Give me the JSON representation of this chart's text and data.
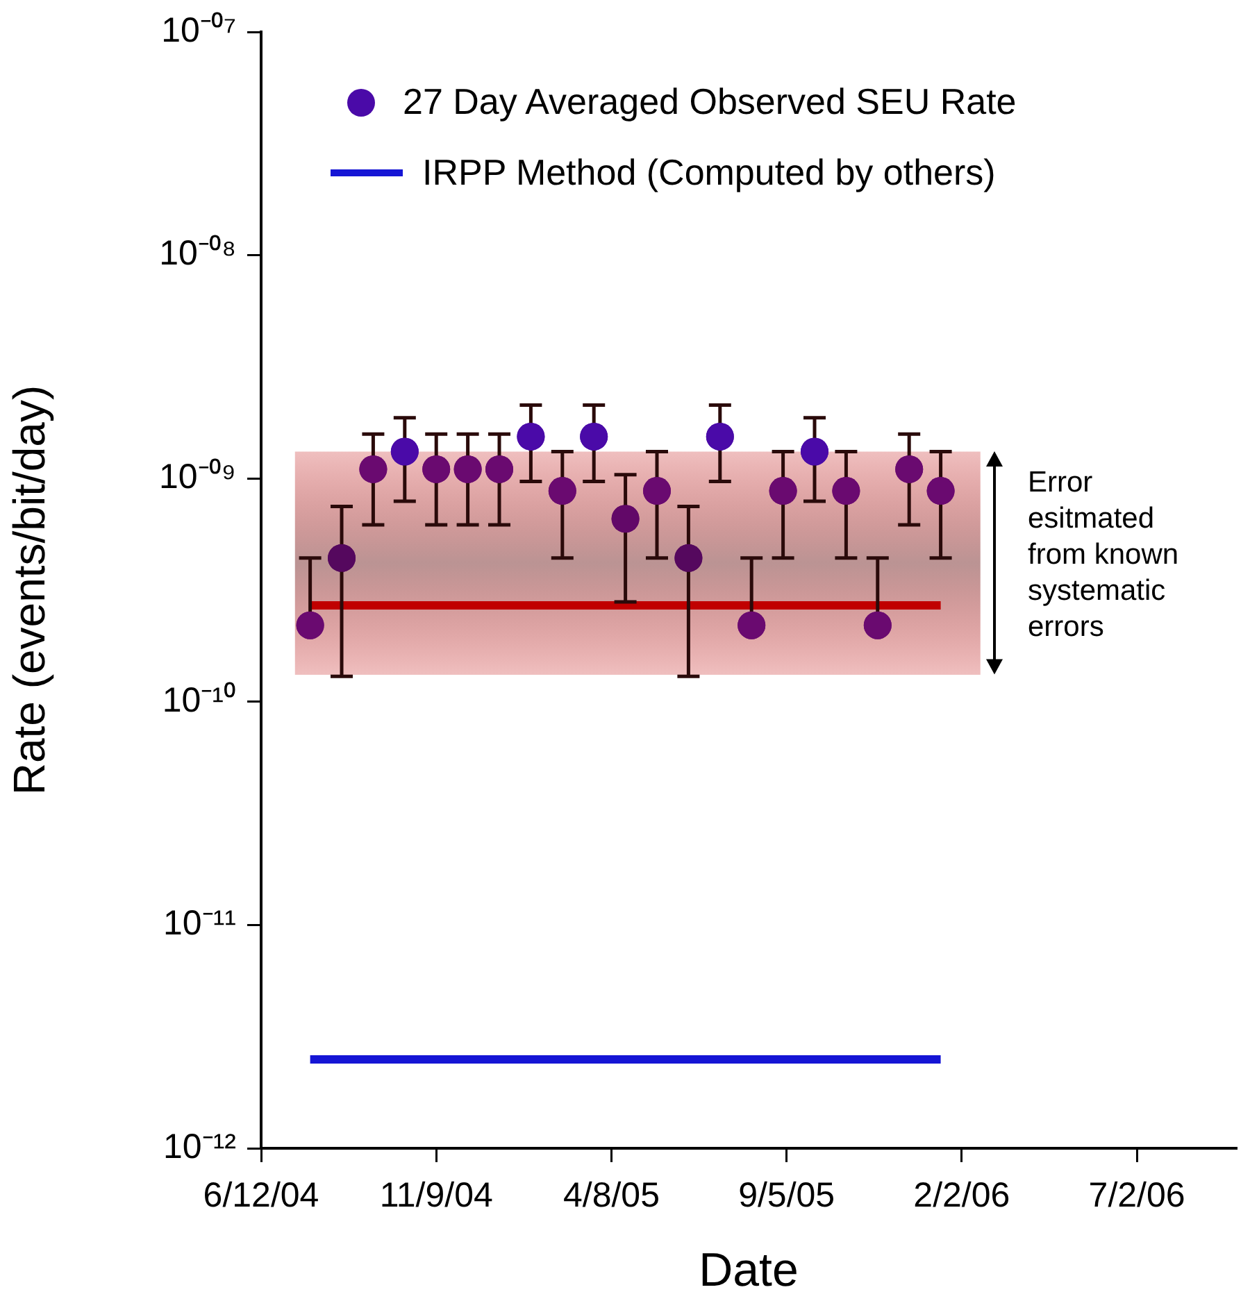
{
  "chart_data": {
    "type": "scatter",
    "xlabel": "Date",
    "ylabel": "Rate (events/bit/day)",
    "log": true,
    "grid": false,
    "legend": "top",
    "xlim": [
      "2004-06-12",
      "2006-09-25"
    ],
    "xticks": [
      {
        "value": "2004-06-12",
        "label": "6/12/04"
      },
      {
        "value": "2004-11-09",
        "label": "11/9/04"
      },
      {
        "value": "2005-04-08",
        "label": "4/8/05"
      },
      {
        "value": "2005-09-05",
        "label": "9/5/05"
      },
      {
        "value": "2006-02-02",
        "label": "2/2/06"
      },
      {
        "value": "2006-07-02",
        "label": "7/2/06"
      }
    ],
    "ylim": [
      1e-12,
      1e-07
    ],
    "yticks": [
      {
        "value": 1e-12,
        "label": "10⁻¹²"
      },
      {
        "value": 1e-11,
        "label": "10⁻¹¹"
      },
      {
        "value": 1e-10,
        "label": "10⁻¹⁰"
      },
      {
        "value": 1e-09,
        "label": "10⁻⁰⁹"
      },
      {
        "value": 1e-08,
        "label": "10⁻⁰⁸"
      },
      {
        "value": 1e-07,
        "label": "10⁻⁰⁷"
      }
    ],
    "series": [
      {
        "name": "27 Day Averaged Observed SEU Rate",
        "marker": "circle",
        "color": "#4a0aa8",
        "x": [
          "2004-07-24",
          "2004-08-20",
          "2004-09-16",
          "2004-10-13",
          "2004-11-09",
          "2004-12-06",
          "2005-01-02",
          "2005-01-29",
          "2005-02-25",
          "2005-03-24",
          "2005-04-20",
          "2005-05-17",
          "2005-06-13",
          "2005-07-10",
          "2005-08-06",
          "2005-09-02",
          "2005-09-29",
          "2005-10-26",
          "2005-11-22",
          "2005-12-19",
          "2006-01-15"
        ],
        "values": [
          2.2e-10,
          4.4e-10,
          1.1e-09,
          1.32e-09,
          1.1e-09,
          1.1e-09,
          1.1e-09,
          1.54e-09,
          8.8e-10,
          1.54e-09,
          6.6e-10,
          8.8e-10,
          4.4e-10,
          1.54e-09,
          2.2e-10,
          8.8e-10,
          1.32e-09,
          8.8e-10,
          2.2e-10,
          1.1e-09,
          8.8e-10
        ],
        "colors": [
          "#6a0a70",
          "#55085e",
          "#6a0a70",
          "#4a0aa8",
          "#6a0a70",
          "#6a0a70",
          "#6a0a70",
          "#4a0aa8",
          "#6a0a70",
          "#4a0aa8",
          "#620868",
          "#6a0a70",
          "#55085e",
          "#4a0aa8",
          "#6a0a70",
          "#6a0a70",
          "#4a0aa8",
          "#6a0a70",
          "#6a0a70",
          "#6a0a70",
          "#6a0a70"
        ],
        "errors": [
          [
            2.2e-10,
            4.4e-10
          ],
          [
            1.3e-10,
            7.5e-10
          ],
          [
            6.2e-10,
            1.58e-09
          ],
          [
            7.9e-10,
            1.87e-09
          ],
          [
            6.2e-10,
            1.58e-09
          ],
          [
            6.2e-10,
            1.58e-09
          ],
          [
            6.2e-10,
            1.58e-09
          ],
          [
            9.7e-10,
            2.13e-09
          ],
          [
            4.4e-10,
            1.32e-09
          ],
          [
            9.7e-10,
            2.13e-09
          ],
          [
            2.8e-10,
            1.04e-09
          ],
          [
            4.4e-10,
            1.32e-09
          ],
          [
            1.3e-10,
            7.5e-10
          ],
          [
            9.7e-10,
            2.13e-09
          ],
          [
            2.2e-10,
            4.4e-10
          ],
          [
            4.4e-10,
            1.32e-09
          ],
          [
            7.9e-10,
            1.87e-09
          ],
          [
            4.4e-10,
            1.32e-09
          ],
          [
            2.2e-10,
            4.4e-10
          ],
          [
            6.2e-10,
            1.58e-09
          ],
          [
            4.4e-10,
            1.32e-09
          ]
        ]
      },
      {
        "type": "line",
        "color": "#c00000",
        "x": [
          "2004-07-11",
          "2004-07-24",
          "2006-01-15",
          "2006-02-18"
        ],
        "values": [
          null,
          2.7e-10,
          2.7e-10,
          null
        ],
        "lower": [
          1.32e-10,
          1.32e-10,
          1.32e-10,
          1.32e-10
        ],
        "upper": [
          1.32e-09,
          1.32e-09,
          1.32e-09,
          1.32e-09
        ]
      },
      {
        "name": "IRPP Method (Computed by others)",
        "type": "line",
        "color": "#1515d5",
        "x": [
          "2004-07-24",
          "2006-01-15"
        ],
        "values": [
          2.5e-12,
          2.5e-12
        ]
      }
    ],
    "annotations": [
      "Error esitmated from known systematic errors"
    ]
  }
}
